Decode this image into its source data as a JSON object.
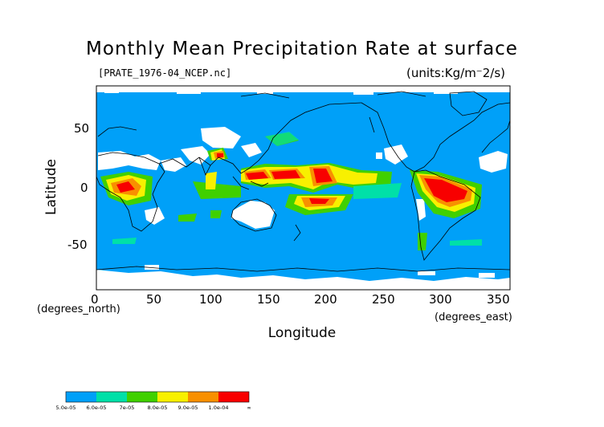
{
  "title": "Monthly Mean Precipitation Rate at surface",
  "file_label": "[PRATE_1976-04_NCEP.nc]",
  "units_label": "(units:Kg/m⁻2/s)",
  "axes": {
    "x_label": "Longitude",
    "y_label": "Latitude",
    "x_units": "(degrees_east)",
    "y_units": "(degrees_north)",
    "x_ticks": [
      "0",
      "50",
      "100",
      "150",
      "200",
      "250",
      "300",
      "350"
    ],
    "y_ticks": [
      "50",
      "0",
      "-50"
    ],
    "x_range": [
      0,
      360
    ],
    "y_range": [
      -90,
      90
    ]
  },
  "map": {
    "background_color": "#00a0f8",
    "missing_color": "#ffffff",
    "coastline_color": "#000000"
  },
  "legend": {
    "colors": [
      "#00a0f8",
      "#00e0a8",
      "#40d000",
      "#f8f000",
      "#f89000",
      "#f80000"
    ],
    "labels": [
      "5.0e-05",
      "6.0e-05",
      "7e-05",
      "8.0e-05",
      "9.0e-05",
      "1.0e-04",
      "∞"
    ]
  }
}
